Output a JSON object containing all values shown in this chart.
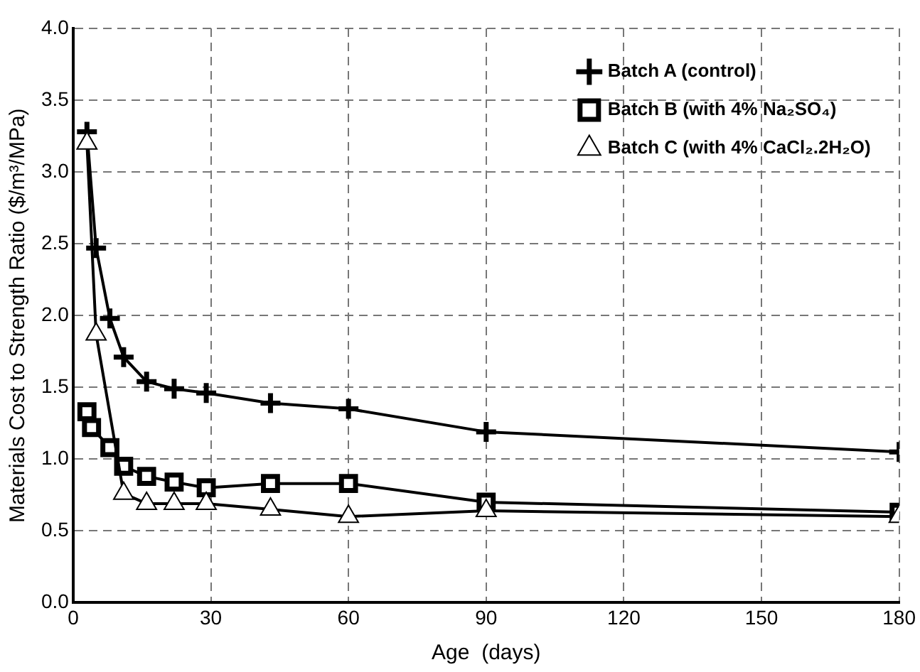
{
  "chart_data": {
    "type": "line",
    "xlabel": "Age  (days)",
    "ylabel": "Materials Cost to Strength Ratio ($/m³/MPa)",
    "xlim": [
      0,
      180
    ],
    "xticks": [
      0,
      30,
      60,
      90,
      120,
      150,
      180
    ],
    "ylim": [
      0,
      4
    ],
    "yticks": [
      {
        "value": 0,
        "label": "0.0"
      },
      {
        "value": 0.5,
        "label": "0.5"
      },
      {
        "value": 1,
        "label": "1.0"
      },
      {
        "value": 1.5,
        "label": "1.5"
      },
      {
        "value": 2,
        "label": "2.0"
      },
      {
        "value": 2.5,
        "label": "2.5"
      },
      {
        "value": 3,
        "label": "3.0"
      },
      {
        "value": 3.5,
        "label": "3.5"
      },
      {
        "value": 4,
        "label": "4.0"
      }
    ],
    "grid": true,
    "legend": "top right",
    "line_style": "solid",
    "series": [
      {
        "name": "Batch A (control)",
        "color": "#000000",
        "marker": "cross",
        "x": [
          3,
          5,
          8,
          11,
          16,
          22,
          29,
          43,
          60,
          90,
          180
        ],
        "values": [
          3.28,
          2.47,
          1.98,
          1.71,
          1.54,
          1.49,
          1.46,
          1.39,
          1.35,
          1.19,
          1.05
        ]
      },
      {
        "name": "Batch B (with 4% Na₂SO₄)",
        "color": "#000000",
        "marker": "square",
        "x": [
          3,
          4,
          8,
          11,
          16,
          22,
          29,
          43,
          60,
          90,
          180
        ],
        "values": [
          1.33,
          1.22,
          1.08,
          0.95,
          0.88,
          0.84,
          0.8,
          0.83,
          0.83,
          0.7,
          0.63
        ]
      },
      {
        "name": "Batch C (with 4% CaCl₂.2H₂O)",
        "color": "#000000",
        "marker": "triangle",
        "x": [
          3,
          5,
          8,
          11,
          16,
          22,
          29,
          43,
          60,
          90,
          180
        ],
        "values": [
          3.2,
          1.87,
          null,
          0.76,
          0.69,
          0.69,
          0.69,
          0.65,
          0.6,
          0.64,
          0.6
        ]
      }
    ]
  }
}
